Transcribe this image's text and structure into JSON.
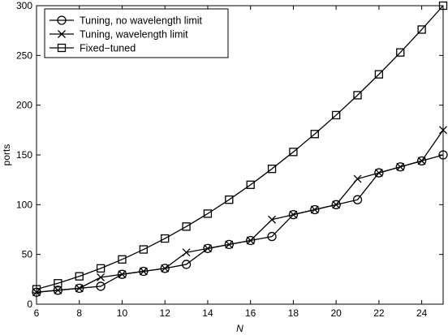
{
  "chart_data": {
    "type": "line",
    "xlabel": "N",
    "ylabel": "ports",
    "xlim": [
      6,
      25
    ],
    "ylim": [
      0,
      300
    ],
    "xticks": [
      6,
      8,
      10,
      12,
      14,
      16,
      18,
      20,
      22,
      24
    ],
    "yticks": [
      0,
      50,
      100,
      150,
      200,
      250,
      300
    ],
    "grid": false,
    "legend_position": "top-left",
    "x": [
      6,
      7,
      8,
      9,
      10,
      11,
      12,
      13,
      14,
      15,
      16,
      17,
      18,
      19,
      20,
      21,
      22,
      23,
      24,
      25
    ],
    "series": [
      {
        "name": "Tuning, no wavelength limit",
        "marker": "circle",
        "values": [
          12,
          14,
          16,
          18,
          30,
          33,
          36,
          40,
          56,
          60,
          64,
          68,
          90,
          95,
          100,
          105,
          132,
          138,
          144,
          150
        ]
      },
      {
        "name": "Tuning, wavelength limit",
        "marker": "x",
        "values": [
          12,
          14,
          16,
          27,
          30,
          33,
          36,
          52,
          56,
          60,
          64,
          85,
          90,
          95,
          100,
          126,
          132,
          138,
          144,
          175
        ]
      },
      {
        "name": "Fixed−tuned",
        "marker": "square",
        "values": [
          15,
          21,
          28,
          36,
          45,
          55,
          66,
          78,
          91,
          105,
          120,
          136,
          153,
          171,
          190,
          210,
          231,
          253,
          276,
          300
        ]
      }
    ]
  }
}
